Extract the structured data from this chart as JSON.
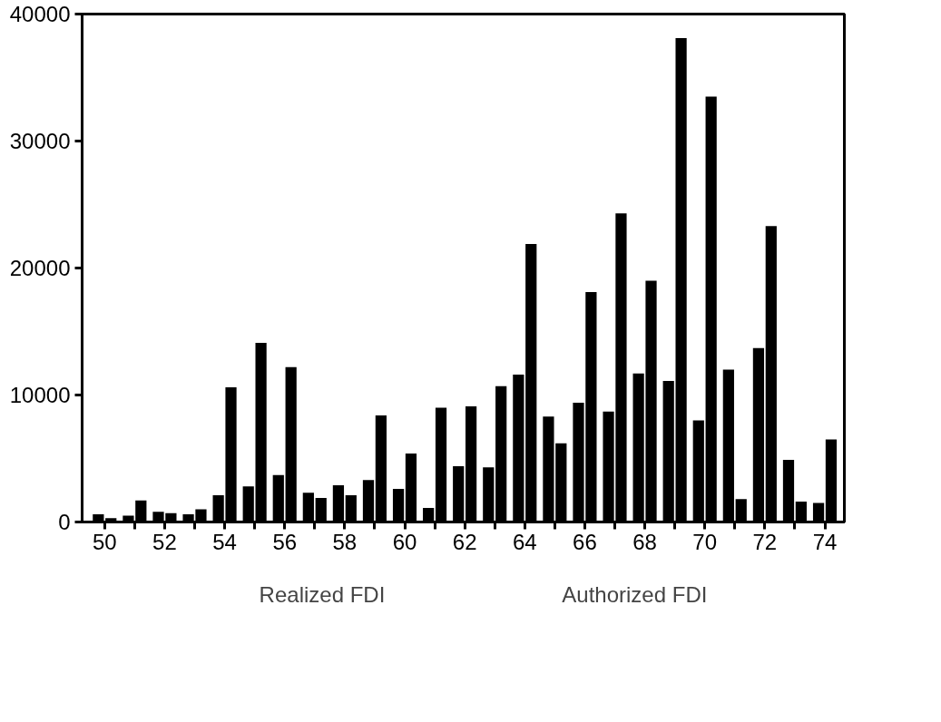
{
  "chart_data": {
    "type": "bar",
    "x": [
      50,
      51,
      52,
      53,
      54,
      55,
      56,
      57,
      58,
      59,
      60,
      61,
      62,
      63,
      64,
      65,
      66,
      67,
      68,
      69,
      70,
      71,
      72,
      73,
      74
    ],
    "series": [
      {
        "name": "Realized FDI",
        "color": "#000000",
        "values": [
          600,
          500,
          800,
          600,
          2100,
          2800,
          3700,
          2300,
          2900,
          3300,
          2600,
          1100,
          4400,
          4300,
          11600,
          8300,
          9400,
          8700,
          11700,
          11100,
          8000,
          12000,
          13700,
          4900,
          1500
        ]
      },
      {
        "name": "Authorized FDI",
        "color": "#000000",
        "values": [
          300,
          1700,
          700,
          1000,
          10600,
          14100,
          12200,
          1900,
          2100,
          8400,
          5400,
          9000,
          9100,
          10700,
          21900,
          6200,
          18100,
          24300,
          19000,
          38100,
          33500,
          1800,
          23300,
          1600,
          6500
        ]
      }
    ],
    "xlim": [
      49.25,
      74.65
    ],
    "xticks": [
      50,
      {
        "value": 51,
        "label": null
      },
      52,
      {
        "value": 53,
        "label": null
      },
      54,
      {
        "value": 55,
        "label": null
      },
      56,
      {
        "value": 57,
        "label": null
      },
      58,
      {
        "value": 59,
        "label": null
      },
      60,
      {
        "value": 61,
        "label": null
      },
      62,
      {
        "value": 63,
        "label": null
      },
      64,
      {
        "value": 65,
        "label": null
      },
      66,
      {
        "value": 67,
        "label": null
      },
      68,
      {
        "value": 69,
        "label": null
      },
      70,
      {
        "value": 71,
        "label": null
      },
      72,
      {
        "value": 73,
        "label": null
      },
      74
    ],
    "ylim": [
      0,
      40000
    ],
    "yticks": [
      0,
      10000,
      20000,
      30000,
      40000
    ],
    "grid": false,
    "legend": "bottom"
  }
}
